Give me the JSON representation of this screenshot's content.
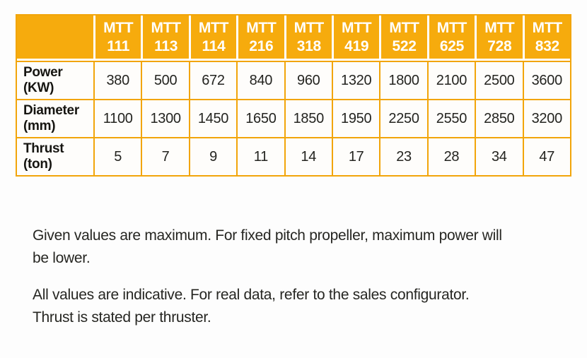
{
  "colors": {
    "accent_orange": "#F6AB0D",
    "border_orange": "#F2A50A",
    "header_text": "#FFFFFF",
    "body_text": "#1D1D1B"
  },
  "table": {
    "name": "mtt-thruster-specifications",
    "corner_label": "",
    "columns": [
      "MTT\n111",
      "MTT\n113",
      "MTT\n114",
      "MTT\n216",
      "MTT\n318",
      "MTT\n419",
      "MTT\n522",
      "MTT\n625",
      "MTT\n728",
      "MTT\n832"
    ],
    "rows": [
      {
        "label": "Power\n(KW)",
        "values": [
          "380",
          "500",
          "672",
          "840",
          "960",
          "1320",
          "1800",
          "2100",
          "2500",
          "3600"
        ]
      },
      {
        "label": "Diameter\n(mm)",
        "values": [
          "1100",
          "1300",
          "1450",
          "1650",
          "1850",
          "1950",
          "2250",
          "2550",
          "2850",
          "3200"
        ]
      },
      {
        "label": "Thrust\n(ton)",
        "values": [
          "5",
          "7",
          "9",
          "11",
          "14",
          "17",
          "23",
          "28",
          "34",
          "47"
        ]
      }
    ]
  },
  "notes": [
    "Given values are maximum. For fixed pitch propeller, maximum power will\nbe lower.",
    "All values are indicative. For real data, refer to the sales configurator.\nThrust is stated per thruster."
  ]
}
